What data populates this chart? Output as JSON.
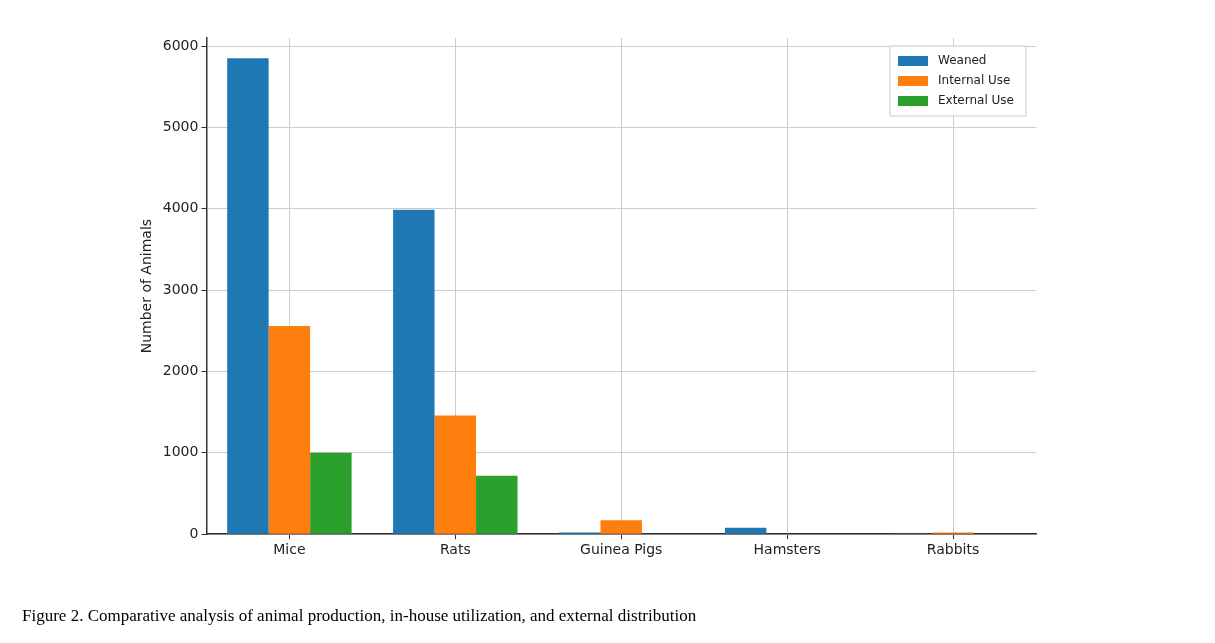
{
  "chart_data": {
    "type": "bar",
    "ylabel": "Number of Animals",
    "categories": [
      "Mice",
      "Rats",
      "Guinea Pigs",
      "Hamsters",
      "Rabbits"
    ],
    "series": [
      {
        "name": "Weaned",
        "color": "#1f77b4",
        "values": [
          5850,
          3990,
          20,
          80,
          10
        ]
      },
      {
        "name": "Internal Use",
        "color": "#ff7f0e",
        "values": [
          2560,
          1460,
          170,
          0,
          20
        ]
      },
      {
        "name": "External Use",
        "color": "#2ca02c",
        "values": [
          1000,
          720,
          0,
          0,
          0
        ]
      }
    ],
    "ylim": [
      0,
      6100
    ],
    "yticks": [
      0,
      1000,
      2000,
      3000,
      4000,
      5000,
      6000
    ],
    "grid": true,
    "legend": "top right",
    "annotations": [
      "Figure 2. Comparative analysis of animal production, in-house utilization, and external distribution"
    ]
  }
}
